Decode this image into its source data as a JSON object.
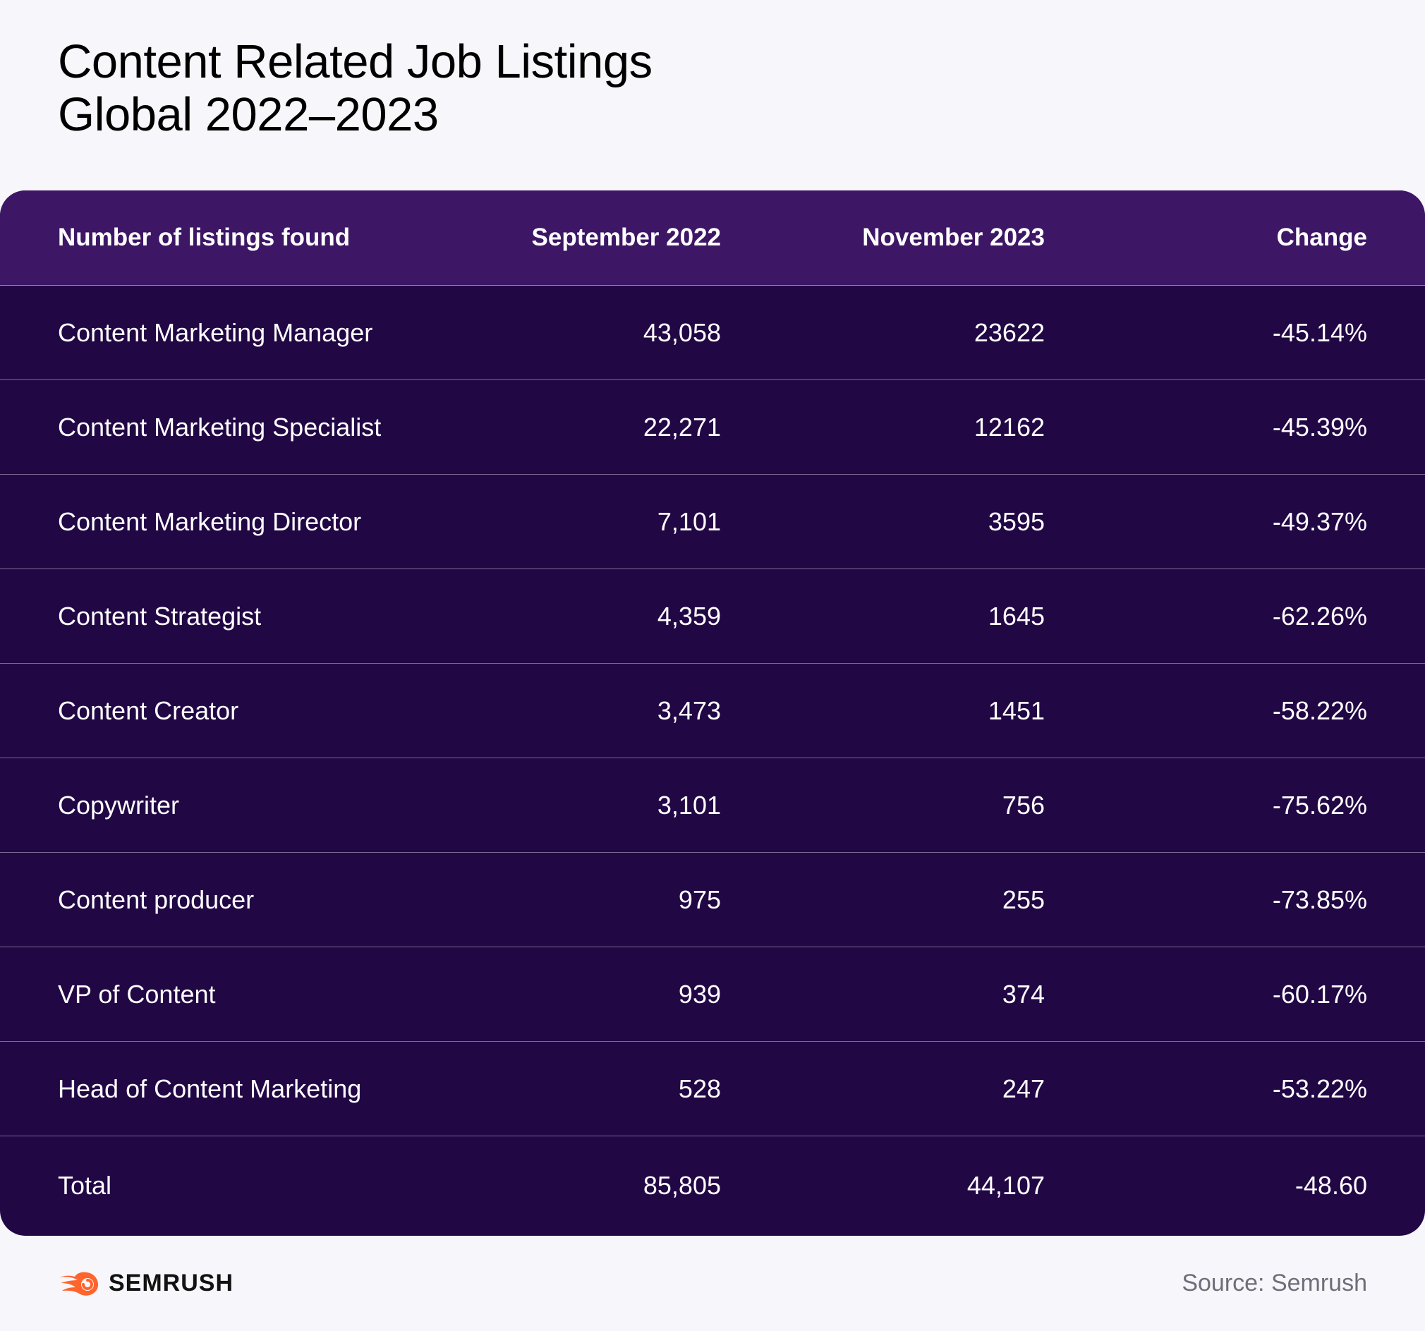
{
  "title": {
    "line1": "Content Related Job Listings",
    "line2": "Global 2022–2023"
  },
  "chart_data": {
    "type": "table",
    "title": "Content Related Job Listings Global 2022–2023",
    "columns": [
      "Number of listings found",
      "September 2022",
      "November 2023",
      "Change"
    ],
    "rows": [
      [
        "Content Marketing Manager",
        "43,058",
        "23622",
        "-45.14%"
      ],
      [
        "Content Marketing Specialist",
        "22,271",
        "12162",
        "-45.39%"
      ],
      [
        "Content Marketing Director",
        "7,101",
        "3595",
        "-49.37%"
      ],
      [
        "Content Strategist",
        "4,359",
        "1645",
        "-62.26%"
      ],
      [
        "Content Creator",
        "3,473",
        "1451",
        "-58.22%"
      ],
      [
        "Copywriter",
        "3,101",
        "756",
        "-75.62%"
      ],
      [
        "Content producer",
        "975",
        "255",
        "-73.85%"
      ],
      [
        "VP of Content",
        "939",
        "374",
        "-60.17%"
      ],
      [
        "Head of Content Marketing",
        "528",
        "247",
        "-53.22%"
      ],
      [
        "Total",
        "85,805",
        "44,107",
        "-48.60"
      ]
    ]
  },
  "footer": {
    "brand": "SEMRUSH",
    "source": "Source: Semrush"
  },
  "colors": {
    "background": "#f7f6fa",
    "header_bg": "#3d1766",
    "row_bg": "#220745",
    "brand_orange": "#ff642d"
  },
  "icons": {
    "brand_logo": "semrush-fire-logo-icon"
  }
}
